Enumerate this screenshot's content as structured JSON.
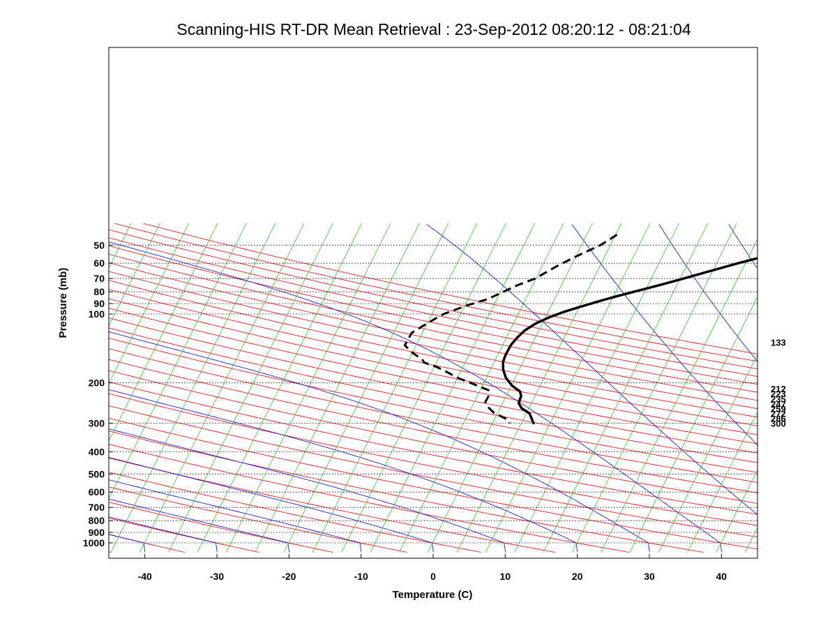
{
  "chart_data": {
    "type": "line",
    "title": "Scanning-HIS RT-DR Mean Retrieval : 23-Sep-2012 08:20:12 - 08:21:04",
    "xlabel": "Temperature (C)",
    "ylabel": "Pressure (mb)",
    "xlim": [
      -45,
      45
    ],
    "ylim": [
      1100,
      45
    ],
    "yscale": "log",
    "x_ticks": [
      -40,
      -30,
      -20,
      -10,
      0,
      10,
      20,
      30,
      40
    ],
    "y_ticks": [
      50,
      60,
      70,
      80,
      90,
      100,
      200,
      300,
      400,
      500,
      600,
      700,
      800,
      900,
      1000
    ],
    "grid": "horizontal dotted at y ticks",
    "right_labels": [
      "133",
      "212",
      "223",
      "235",
      "247",
      "259",
      "272",
      "286",
      "300"
    ],
    "right_label_pressures": [
      133,
      212,
      223,
      235,
      247,
      259,
      272,
      286,
      300
    ],
    "colors": {
      "dry_adiabats": "#ff0000",
      "moist_adiabats": "#0000ff",
      "mixing_ratio": "#00cc00",
      "profiles": "#000000",
      "grid": "#000000"
    },
    "background_lines": {
      "dry_adiabat_theta_K": [
        203,
        213,
        223,
        233,
        243,
        253,
        263,
        273,
        283,
        293,
        303,
        313,
        323,
        333,
        343,
        353,
        363,
        373,
        383,
        393,
        403,
        413,
        423,
        433,
        443,
        453,
        463,
        473,
        483,
        493,
        503,
        513,
        523
      ],
      "moist_adiabat_theta_K": [
        203,
        213,
        223,
        233,
        243,
        253,
        263,
        273,
        283,
        293,
        303,
        313,
        323,
        333,
        343,
        353,
        363,
        373,
        383,
        393,
        403,
        413,
        423,
        433,
        443,
        453,
        463,
        473,
        483,
        493,
        503,
        513,
        523
      ],
      "mixing_ratio_base_temps_C": [
        -72,
        -68,
        -64,
        -60,
        -56,
        -52,
        -48,
        -44,
        -40,
        -36,
        -32,
        -28,
        -24,
        -20,
        -16,
        -12,
        -8,
        -4,
        0,
        4,
        8,
        12,
        16,
        20,
        24,
        28,
        32,
        36,
        40,
        44,
        48,
        52,
        56,
        60,
        64,
        68,
        72,
        76,
        80,
        84,
        88,
        92,
        96,
        100,
        104,
        108,
        112,
        116,
        120,
        124,
        128,
        132,
        136,
        140,
        144,
        148
      ]
    },
    "series": [
      {
        "name": "Temperature",
        "style": "solid",
        "points": [
          [
            36,
            45
          ],
          [
            31,
            49
          ],
          [
            25,
            55
          ],
          [
            21,
            60
          ],
          [
            17,
            66
          ],
          [
            14,
            71
          ],
          [
            11,
            76
          ],
          [
            7,
            83
          ],
          [
            5,
            87
          ],
          [
            2,
            94
          ],
          [
            0.5,
            98
          ],
          [
            -1,
            103
          ],
          [
            -2.5,
            110
          ],
          [
            -3.5,
            118
          ],
          [
            -4,
            127
          ],
          [
            -4.3,
            137
          ],
          [
            -4.3,
            150
          ],
          [
            -4.1,
            162
          ],
          [
            -3.5,
            175
          ],
          [
            -2.5,
            190
          ],
          [
            -1,
            206
          ],
          [
            0.5,
            218
          ],
          [
            1,
            228
          ],
          [
            1.2,
            245
          ],
          [
            2,
            258
          ],
          [
            3.5,
            272
          ],
          [
            4.8,
            300
          ]
        ]
      },
      {
        "name": "Dewpoint",
        "style": "dashed",
        "points": [
          [
            2,
            45
          ],
          [
            0.5,
            50
          ],
          [
            -2,
            56
          ],
          [
            -4,
            62
          ],
          [
            -6,
            70
          ],
          [
            -8,
            75
          ],
          [
            -11,
            86
          ],
          [
            -13.5,
            92
          ],
          [
            -16,
            100
          ],
          [
            -17,
            106
          ],
          [
            -18,
            113
          ],
          [
            -19,
            121
          ],
          [
            -19,
            128
          ],
          [
            -19,
            137
          ],
          [
            -17.5,
            147
          ],
          [
            -15.5,
            158
          ],
          [
            -15,
            163
          ],
          [
            -13,
            170
          ],
          [
            -11,
            180
          ],
          [
            -9,
            191
          ],
          [
            -7,
            200
          ],
          [
            -5,
            210
          ],
          [
            -4,
            215
          ],
          [
            -3.5,
            225
          ],
          [
            -3.5,
            237
          ],
          [
            -3.5,
            243
          ],
          [
            -2.5,
            258
          ],
          [
            -1.5,
            270
          ],
          [
            1,
            290
          ],
          [
            1.5,
            300
          ]
        ]
      }
    ]
  }
}
